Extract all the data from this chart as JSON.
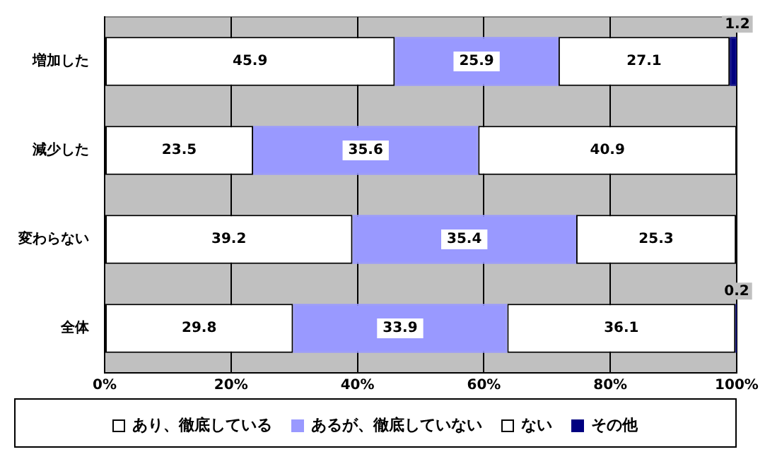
{
  "chart_data": {
    "type": "bar",
    "orientation": "horizontal",
    "stacked": true,
    "categories": [
      "増加した",
      "減少した",
      "変わらない",
      "全体"
    ],
    "series": [
      {
        "name": "あり、徹底している",
        "color": "#ffffff",
        "values": [
          45.9,
          23.5,
          39.2,
          29.8
        ],
        "value_labels": [
          "45.9",
          "23.5",
          "39.2",
          "29.8"
        ]
      },
      {
        "name": "あるが、徹底していない",
        "color": "#9999ff",
        "values": [
          25.9,
          35.6,
          35.4,
          33.9
        ],
        "value_labels": [
          "25.9",
          "35.6",
          "35.4",
          "33.9"
        ]
      },
      {
        "name": "ない",
        "color": "#ffffff",
        "values": [
          27.1,
          40.9,
          25.3,
          36.1
        ],
        "value_labels": [
          "27.1",
          "40.9",
          "25.3",
          "36.1"
        ]
      },
      {
        "name": "その他",
        "color": "#000080",
        "values": [
          1.2,
          null,
          null,
          0.2
        ],
        "value_labels": [
          "1.2",
          null,
          null,
          "0.2"
        ]
      }
    ],
    "xlim": [
      0,
      100
    ],
    "xticks": [
      {
        "value": 0,
        "label": "0%"
      },
      {
        "value": 20,
        "label": "20%"
      },
      {
        "value": 40,
        "label": "40%"
      },
      {
        "value": 60,
        "label": "60%"
      },
      {
        "value": 80,
        "label": "80%"
      },
      {
        "value": 100,
        "label": "100%"
      }
    ],
    "grid": "x",
    "legend": "bottom"
  }
}
